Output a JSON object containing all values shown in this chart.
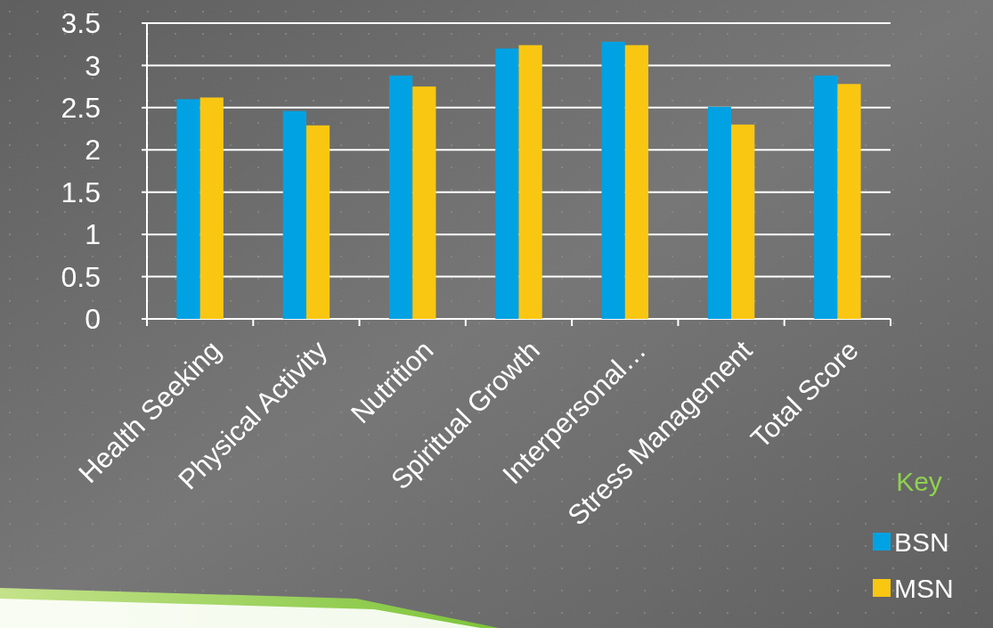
{
  "chart_data": {
    "type": "bar",
    "categories": [
      "Health Seeking",
      "Physical Activity",
      "Nutrition",
      "Spiritual Growth",
      "Interpersonal…",
      "Stress Management",
      "Total Score"
    ],
    "series": [
      {
        "name": "BSN",
        "color": "#00a2e3",
        "values": [
          2.6,
          2.46,
          2.88,
          3.2,
          3.28,
          2.51,
          2.88
        ]
      },
      {
        "name": "MSN",
        "color": "#f9c712",
        "values": [
          2.62,
          2.29,
          2.75,
          3.24,
          3.24,
          2.3,
          2.78
        ]
      }
    ],
    "ylim": [
      0,
      3.5
    ],
    "yticks": [
      0,
      0.5,
      1,
      1.5,
      2,
      2.5,
      3,
      3.5
    ],
    "grid": "y",
    "legend": "bottom right",
    "legend_title": "Key"
  }
}
